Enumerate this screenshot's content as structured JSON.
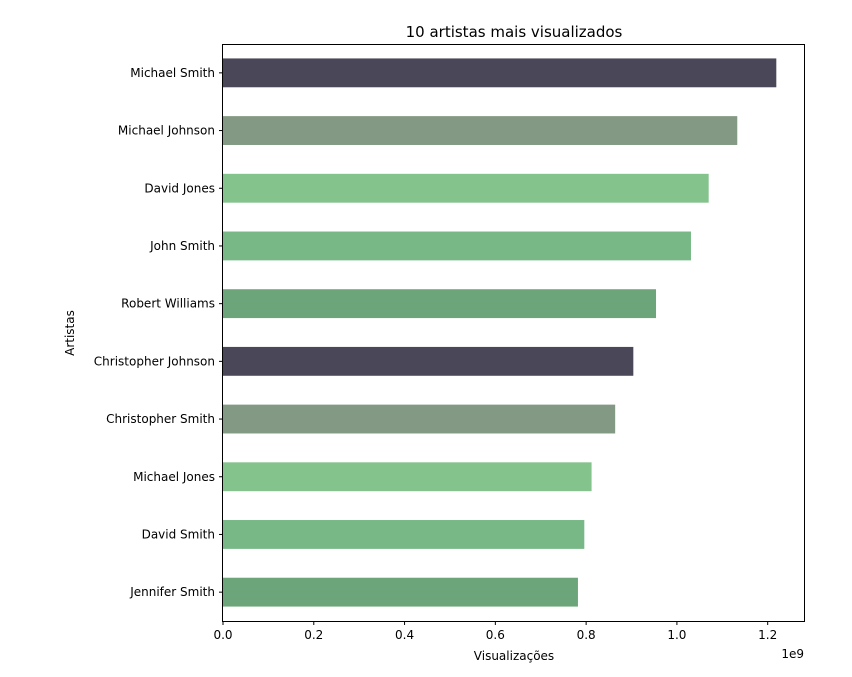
{
  "chart_data": {
    "type": "bar",
    "orientation": "horizontal",
    "title": "10 artistas mais visualizados",
    "xlabel": "Visualizações",
    "ylabel": "Artistas",
    "x_offset_text": "1e9",
    "xlim": [
      0,
      1.28
    ],
    "x_ticks": [
      0.0,
      0.2,
      0.4,
      0.6,
      0.8,
      1.0,
      1.2
    ],
    "x_tick_labels": [
      "0.0",
      "0.2",
      "0.4",
      "0.6",
      "0.8",
      "1.0",
      "1.2"
    ],
    "grid": false,
    "categories": [
      "Michael Smith",
      "Michael Johnson",
      "David Jones",
      "John Smith",
      "Robert Williams",
      "Christopher Johnson",
      "Christopher Smith",
      "Michael Jones",
      "David Smith",
      "Jennifer Smith"
    ],
    "values": [
      1.219,
      1.133,
      1.07,
      1.031,
      0.954,
      0.904,
      0.864,
      0.812,
      0.796,
      0.782
    ],
    "colors": [
      "#4a4858",
      "#839983",
      "#85c38c",
      "#77b886",
      "#6da57a",
      "#4a4858",
      "#839983",
      "#85c38c",
      "#77b886",
      "#6da57a"
    ]
  }
}
